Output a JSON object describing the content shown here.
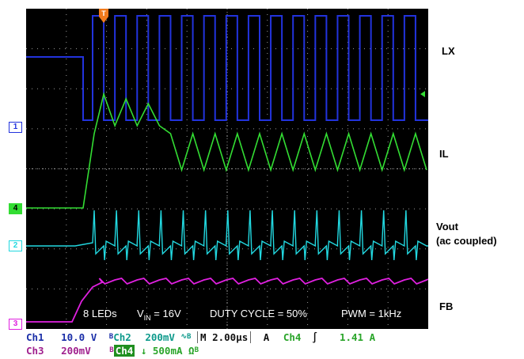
{
  "right_labels": {
    "lx": "LX",
    "il": "IL",
    "vout": "Vout",
    "vout_sub": "(ac coupled)",
    "fb": "FB"
  },
  "channel_markers": {
    "ch1": "1",
    "ch2": "2",
    "ch3": "3",
    "ch4": "4",
    "trigger": "T"
  },
  "annotation": {
    "leds": "8 LEDs",
    "vin_prefix": "V",
    "vin_sub": "IN",
    "vin_value": " = 16V",
    "duty": "DUTY CYCLE = 50%",
    "pwm": "PWM = 1kHz"
  },
  "status": {
    "ch1_name": "Ch1",
    "ch1_scale": "10.0 V",
    "bw1": "B",
    "ch2_name": "Ch2",
    "ch2_scale": "200mV",
    "ch2_coupling": "∿",
    "bw2": "B",
    "timebase_prefix": "M",
    "timebase": "2.00µs",
    "trig_mode": "A",
    "trig_source": "Ch4",
    "trig_slope": "∫",
    "trig_level": "1.41 A",
    "ch3_name": "Ch3",
    "ch3_scale": "200mV",
    "bw3": "B",
    "ch4_name": "Ch4",
    "ch4_arrow": "↓",
    "ch4_scale": "500mA",
    "ch4_unit": "Ω",
    "bw4": "B"
  },
  "colors": {
    "ch1": "#2233dd",
    "ch2": "#22d8e0",
    "ch3": "#e020e0",
    "ch4": "#33dd33",
    "trigger": "#f07a1c",
    "grid": "#9a9a9a"
  },
  "waveforms": {
    "lx_low_level": 0.7,
    "lx_high_level": 23.5,
    "duty_cycle": 0.5,
    "switch_cycles": 15
  }
}
